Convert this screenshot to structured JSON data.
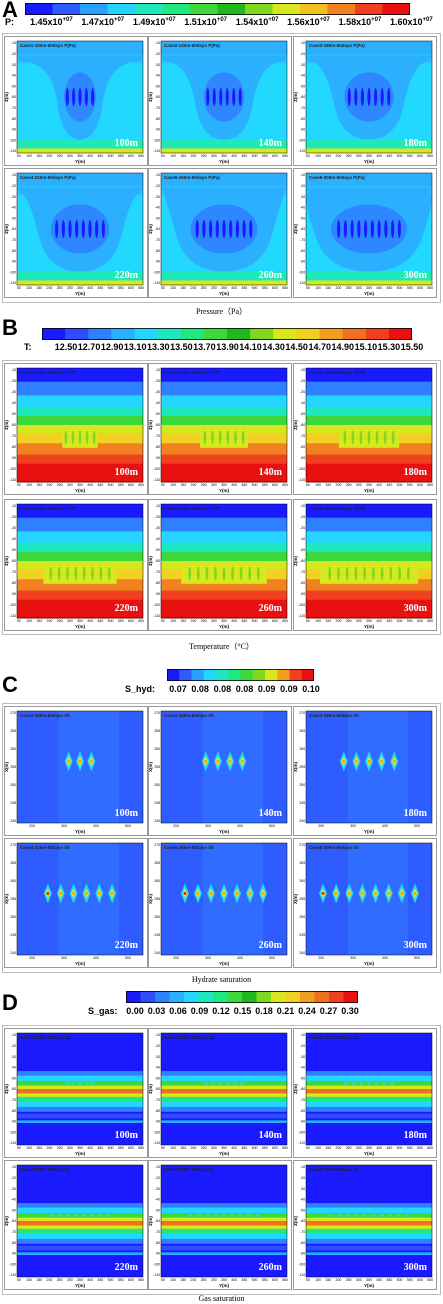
{
  "panels": [
    {
      "letter": "A",
      "prefix": "P:",
      "colorbar_labels": [
        "1.45x10+07",
        "1.47x10+07",
        "1.49x10+07",
        "1.51x10+07",
        "1.54x10+07",
        "1.56x10+07",
        "1.58x10+07",
        "1.60x10+07"
      ],
      "colorbar_colors": [
        "#1a1aff",
        "#2f5cff",
        "#2aa0ff",
        "#24d6ff",
        "#1fe8c0",
        "#20e880",
        "#3cd83c",
        "#1fb81f",
        "#7fd81f",
        "#d8e81f",
        "#f0c020",
        "#f08020",
        "#f04020",
        "#e81010"
      ],
      "caption": "Pressure（Pa）",
      "plot_type": "pressure",
      "cases": [
        {
          "title": "Case1-100m-60days  P(Pa)",
          "dist": "100m"
        },
        {
          "title": "Case2-140m-60days  P(Pa)",
          "dist": "140m"
        },
        {
          "title": "Case3-180m-60days  P(Pa)",
          "dist": "180m"
        },
        {
          "title": "Case4-220m-60days  P(Pa)",
          "dist": "220m"
        },
        {
          "title": "Case5-260m-60days  P(Pa)",
          "dist": "260m"
        },
        {
          "title": "Case6-300m-60days  P(Pa)",
          "dist": "300m"
        }
      ],
      "xlabel": "Y(m)",
      "ylabel": "Z(m)"
    },
    {
      "letter": "B",
      "prefix": "T:",
      "colorbar_labels": [
        "12.50",
        "12.70",
        "12.90",
        "13.10",
        "13.30",
        "13.50",
        "13.70",
        "13.90",
        "14.10",
        "14.30",
        "14.50",
        "14.70",
        "14.90",
        "15.10",
        "15.30",
        "15.50"
      ],
      "colorbar_colors": [
        "#1a1aff",
        "#2f4cff",
        "#2f80ff",
        "#2ab0ff",
        "#24d6ff",
        "#1fe8c0",
        "#20e880",
        "#3cd83c",
        "#1fb81f",
        "#7fd81f",
        "#d8e81f",
        "#f0d020",
        "#f0a020",
        "#f07020",
        "#f04020",
        "#e81010"
      ],
      "caption": "Temperature（°C）",
      "plot_type": "temperature",
      "cases": [
        {
          "title": "Case1-100m-60days  T(oC)",
          "dist": "100m"
        },
        {
          "title": "Case2-140m-60days  T(oC)",
          "dist": "140m"
        },
        {
          "title": "Case3-180m-60days  T(oC)",
          "dist": "180m"
        },
        {
          "title": "Case4-220m-60days  T(oC)",
          "dist": "220m"
        },
        {
          "title": "Case5-260m-60days  T(oC)",
          "dist": "260m"
        },
        {
          "title": "Case6-300m-60days  T(oC)",
          "dist": "300m"
        }
      ],
      "xlabel": "Y(m)",
      "ylabel": "Z(m)"
    },
    {
      "letter": "C",
      "prefix": "S_hyd:",
      "colorbar_labels": [
        "0.07",
        "0.08",
        "0.08",
        "0.08",
        "0.09",
        "0.09",
        "0.10"
      ],
      "colorbar_colors": [
        "#1a1aff",
        "#2f5cff",
        "#2aa0ff",
        "#24d6ff",
        "#1fe8c0",
        "#20e880",
        "#3cd83c",
        "#7fd81f",
        "#d8e81f",
        "#f0a020",
        "#f04020",
        "#e81010"
      ],
      "caption": "Hydrate saturation",
      "plot_type": "hydrate",
      "cases": [
        {
          "title": "Case1-100m-60days  Sh",
          "dist": "100m",
          "n": 3
        },
        {
          "title": "Case2-140m-60days  Sh",
          "dist": "140m",
          "n": 4
        },
        {
          "title": "Case3-180m-60days  Sh",
          "dist": "180m",
          "n": 5
        },
        {
          "title": "Case4-220m-60days  Sh",
          "dist": "220m",
          "n": 6
        },
        {
          "title": "Case5-260m-60days  Sh",
          "dist": "260m",
          "n": 7
        },
        {
          "title": "Case6-300m-60days  Sh",
          "dist": "300m",
          "n": 8
        }
      ],
      "xlabel": "Y(m)",
      "ylabel": "X(m)"
    },
    {
      "letter": "D",
      "prefix": "S_gas:",
      "colorbar_labels": [
        "0.00",
        "0.03",
        "0.06",
        "0.09",
        "0.12",
        "0.15",
        "0.18",
        "0.21",
        "0.24",
        "0.27",
        "0.30"
      ],
      "colorbar_colors": [
        "#1a1aff",
        "#2f4cff",
        "#2f80ff",
        "#2ab0ff",
        "#24d6ff",
        "#1fe8c0",
        "#20e880",
        "#3cd83c",
        "#1fb81f",
        "#7fd81f",
        "#d8e81f",
        "#f0d020",
        "#f0a020",
        "#f07020",
        "#f04020",
        "#e81010"
      ],
      "caption": "Gas saturation",
      "plot_type": "gas",
      "cases": [
        {
          "title": "Case1-100m-60days  Sg",
          "dist": "100m"
        },
        {
          "title": "Case2-140m-60days  Sg",
          "dist": "140m"
        },
        {
          "title": "Case3-180m-60days  Sg",
          "dist": "180m"
        },
        {
          "title": "Case4-220m-60days  Sg",
          "dist": "220m"
        },
        {
          "title": "Case5-260m-60days  Sg",
          "dist": "260m"
        },
        {
          "title": "Case6-300m-60days  Sg",
          "dist": "300m"
        }
      ],
      "xlabel": "Y(m)",
      "ylabel": "Z(m)"
    }
  ],
  "xticks_depth": [
    "50",
    "100",
    "150",
    "200",
    "250",
    "300",
    "350",
    "400",
    "450",
    "500",
    "550",
    "600",
    "650"
  ],
  "yticks_depth": [
    "-10",
    "-20",
    "-30",
    "-40",
    "-50",
    "-60",
    "-70",
    "-80",
    "-90",
    "-100",
    "-110"
  ],
  "xticks_map": [
    "200",
    "300",
    "400",
    "500"
  ],
  "yticks_map": [
    "270",
    "265",
    "260",
    "255",
    "250",
    "245",
    "240"
  ]
}
